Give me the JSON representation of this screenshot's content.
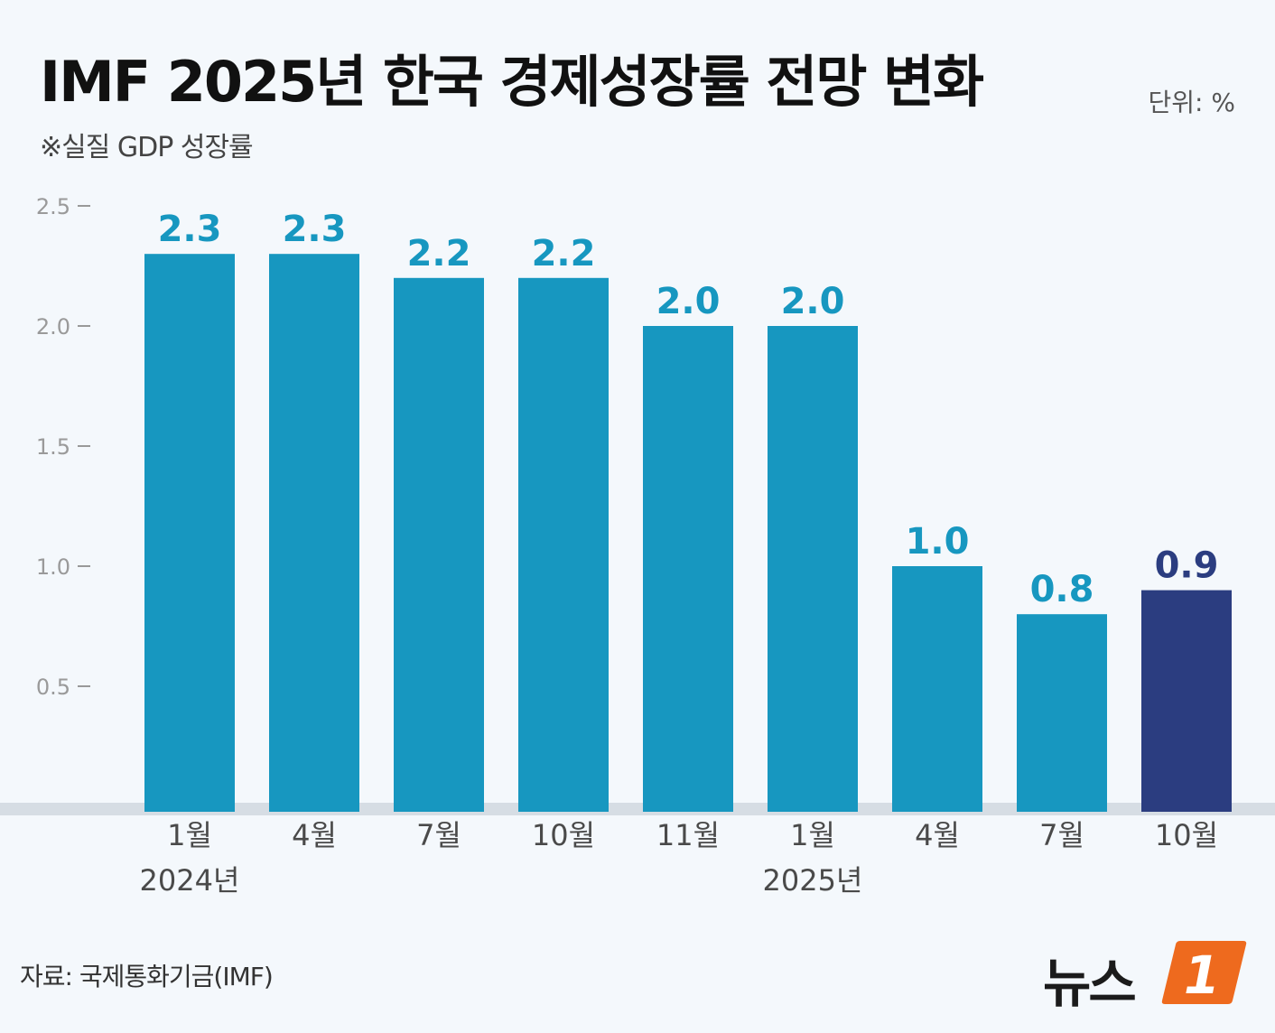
{
  "header": {
    "title": "IMF 2025년 한국 경제성장률 전망 변화",
    "subtitle": "※실질 GDP 성장률",
    "unit": "단위: %"
  },
  "footer": {
    "source": "자료: 국제통화기금(IMF)",
    "logo_text": "뉴스",
    "logo_mark": "1"
  },
  "colors": {
    "bar": "#1797c0",
    "highlight_bar": "#2b3d80",
    "label": "#1797c0",
    "highlight_label": "#2b3d80",
    "axis": "#999999"
  },
  "chart_data": {
    "type": "bar",
    "title": "IMF 2025년 한국 경제성장률 전망 변화",
    "subtitle": "※실질 GDP 성장률",
    "unit": "단위: %",
    "categories": [
      "1월",
      "4월",
      "7월",
      "10월",
      "11월",
      "1월",
      "4월",
      "7월",
      "10월"
    ],
    "year_labels": [
      {
        "index": 0,
        "label": "2024년"
      },
      {
        "index": 5,
        "label": "2025년"
      }
    ],
    "values": [
      2.3,
      2.3,
      2.2,
      2.2,
      2.0,
      2.0,
      1.0,
      0.8,
      0.9
    ],
    "value_labels": [
      "2.3",
      "2.3",
      "2.2",
      "2.2",
      "2.0",
      "2.0",
      "1.0",
      "0.8",
      "0.9"
    ],
    "highlight_index": 8,
    "yticks": [
      0.5,
      1.0,
      1.5,
      2.0,
      2.5
    ],
    "ytick_labels": [
      "0.5",
      "1.0",
      "1.5",
      "2.0",
      "2.5"
    ],
    "ylim": [
      0,
      2.5
    ],
    "xlabel": "",
    "ylabel": "",
    "grid": false
  }
}
